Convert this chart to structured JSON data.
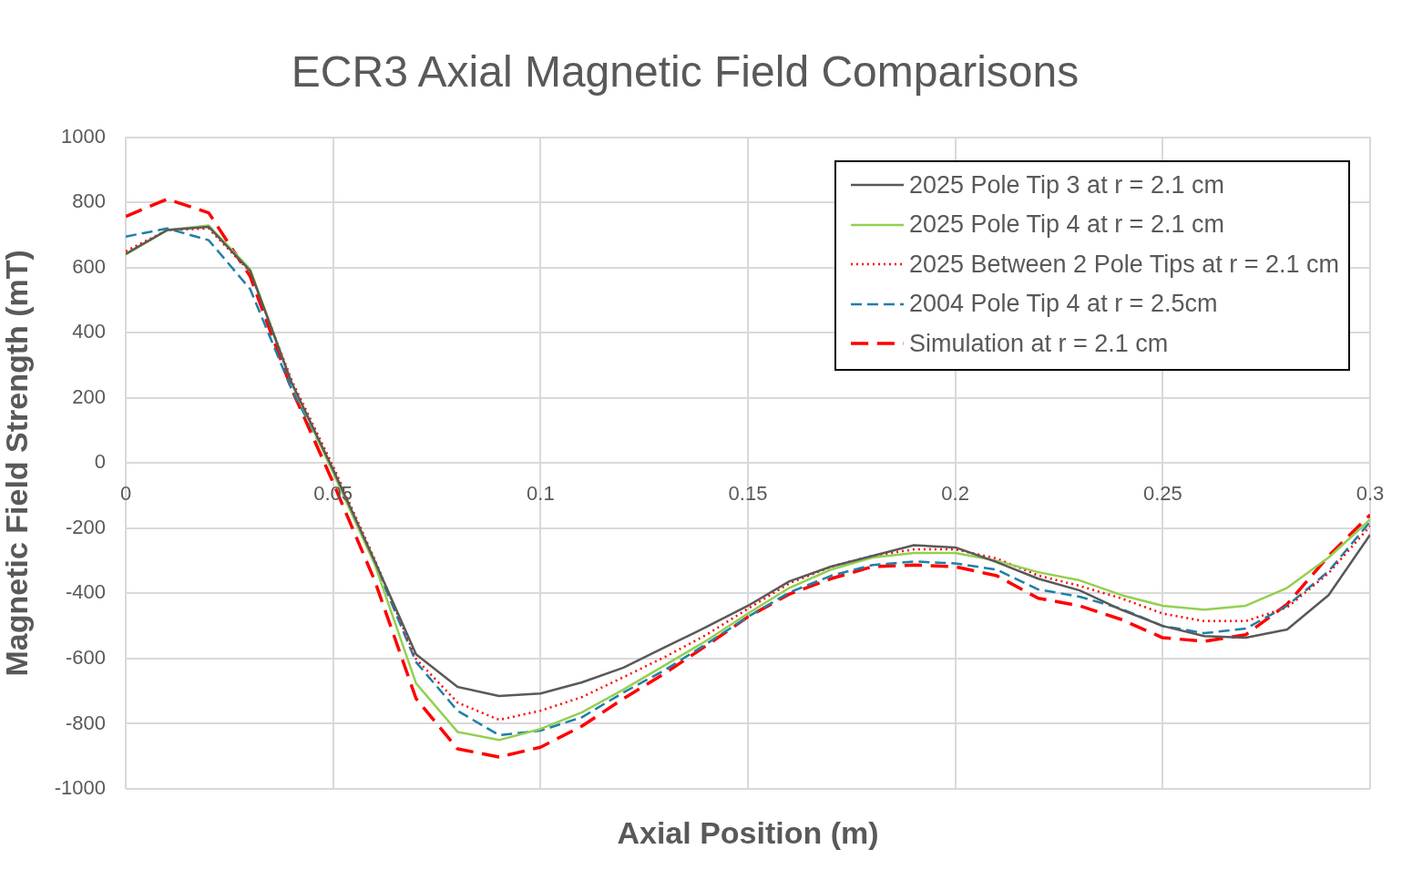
{
  "chart_data": {
    "type": "line",
    "title": "ECR3 Axial Magnetic Field Comparisons",
    "xlabel": "Axial Position (m)",
    "ylabel": "Magnetic Field Strength (mT)",
    "x": [
      0,
      0.01,
      0.02,
      0.03,
      0.04,
      0.05,
      0.06,
      0.07,
      0.08,
      0.09,
      0.1,
      0.11,
      0.12,
      0.13,
      0.14,
      0.15,
      0.16,
      0.17,
      0.18,
      0.19,
      0.2,
      0.21,
      0.22,
      0.23,
      0.24,
      0.25,
      0.26,
      0.27,
      0.28,
      0.29,
      0.3
    ],
    "series": [
      {
        "name": "2025 Pole Tip 3 at r = 2.1 cm",
        "color": "#595959",
        "line_style": "solid",
        "values": [
          642,
          715,
          725,
          590,
          246,
          -20,
          -300,
          -587,
          -687,
          -715,
          -707,
          -673,
          -628,
          -565,
          -503,
          -438,
          -363,
          -318,
          -285,
          -252,
          -259,
          -304,
          -355,
          -391,
          -450,
          -500,
          -531,
          -536,
          -511,
          -405,
          -220
        ]
      },
      {
        "name": "2025 Pole Tip 4 at r = 2.1 cm",
        "color": "#92d050",
        "line_style": "solid",
        "values": [
          640,
          715,
          729,
          595,
          246,
          -30,
          -310,
          -676,
          -825,
          -850,
          -816,
          -765,
          -695,
          -620,
          -545,
          -462,
          -383,
          -327,
          -290,
          -276,
          -276,
          -300,
          -335,
          -360,
          -405,
          -438,
          -450,
          -438,
          -383,
          -290,
          -173
        ]
      },
      {
        "name": "2025 Between 2 Pole Tips at r = 2.1 cm",
        "color": "#ff0000",
        "line_style": "dotted",
        "values": [
          650,
          715,
          720,
          587,
          254,
          -10,
          -295,
          -601,
          -735,
          -788,
          -760,
          -718,
          -657,
          -595,
          -527,
          -447,
          -369,
          -318,
          -285,
          -265,
          -265,
          -293,
          -345,
          -377,
          -415,
          -462,
          -485,
          -485,
          -443,
          -338,
          -193
        ]
      },
      {
        "name": "2004 Pole Tip 4 at r = 2.5cm",
        "color": "#1f7fa8",
        "line_style": "dashed",
        "values": [
          695,
          720,
          684,
          534,
          226,
          -20,
          -305,
          -611,
          -760,
          -835,
          -821,
          -780,
          -704,
          -635,
          -555,
          -472,
          -397,
          -346,
          -313,
          -302,
          -308,
          -327,
          -388,
          -410,
          -447,
          -500,
          -522,
          -508,
          -438,
          -332,
          -180
        ]
      },
      {
        "name": "Simulation at r = 2.1 cm",
        "color": "#ff0000",
        "line_style": "dashed",
        "values": [
          757,
          810,
          768,
          573,
          227,
          -60,
          -360,
          -723,
          -877,
          -902,
          -872,
          -807,
          -723,
          -645,
          -560,
          -472,
          -402,
          -355,
          -318,
          -313,
          -318,
          -346,
          -415,
          -438,
          -480,
          -536,
          -547,
          -527,
          -433,
          -285,
          -159
        ]
      }
    ],
    "xlim": [
      0,
      0.3
    ],
    "xticks": [
      0,
      0.05,
      0.1,
      0.15,
      0.2,
      0.25,
      0.3
    ],
    "ylim": [
      -1000,
      1000
    ],
    "yticks": [
      -1000,
      -800,
      -600,
      -400,
      -200,
      0,
      200,
      400,
      600,
      800,
      1000
    ],
    "grid": true,
    "legend": "top right",
    "marker": "none"
  }
}
